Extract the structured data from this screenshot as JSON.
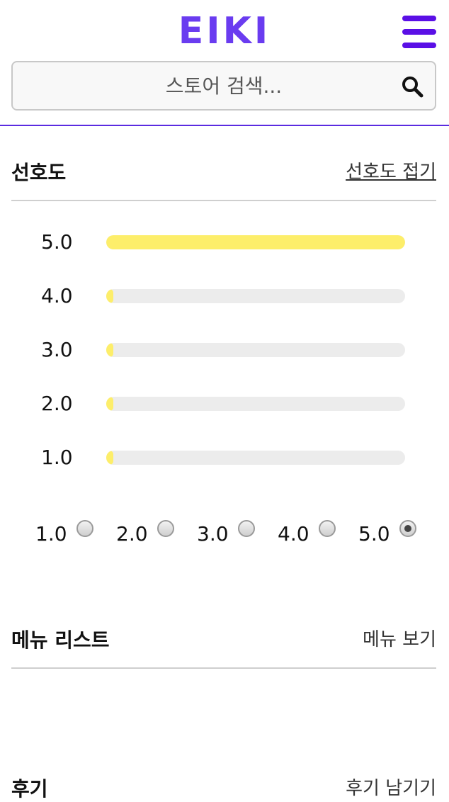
{
  "header": {
    "logo": "EIKI",
    "search_placeholder": "스토어 검색..."
  },
  "preference": {
    "title": "선호도",
    "toggle_label": "선호도 접기",
    "ratings": [
      {
        "label": "5.0",
        "fraction": 1.0
      },
      {
        "label": "4.0",
        "fraction": 0.0
      },
      {
        "label": "3.0",
        "fraction": 0.0
      },
      {
        "label": "2.0",
        "fraction": 0.0
      },
      {
        "label": "1.0",
        "fraction": 0.0
      }
    ],
    "options": [
      {
        "label": "1.0",
        "checked": false
      },
      {
        "label": "2.0",
        "checked": false
      },
      {
        "label": "3.0",
        "checked": false
      },
      {
        "label": "4.0",
        "checked": false
      },
      {
        "label": "5.0",
        "checked": true
      }
    ]
  },
  "menu_section": {
    "title": "메뉴 리스트",
    "link": "메뉴 보기"
  },
  "review_section": {
    "title": "후기",
    "link": "후기 남기기"
  },
  "colors": {
    "accent": "#6a3cf0",
    "bar_fill": "#fdee6a",
    "bar_track": "#ececec"
  }
}
